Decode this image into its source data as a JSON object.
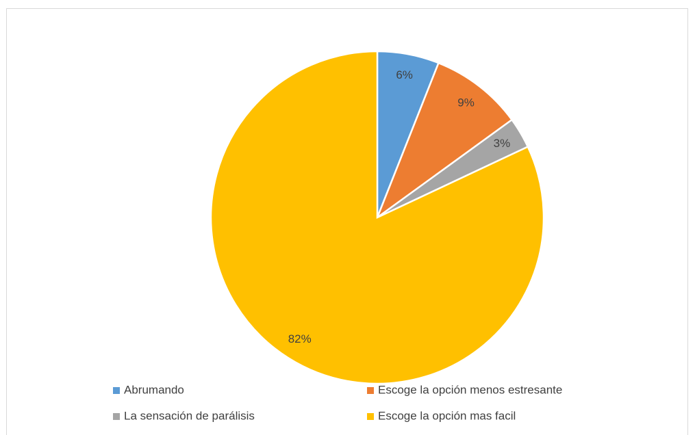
{
  "chart_data": {
    "type": "pie",
    "categories": [
      "Abrumando",
      "Escoge la opción menos estresante",
      "La sensación de parálisis",
      "Escoge la opción mas facil"
    ],
    "values": [
      6,
      9,
      3,
      82
    ],
    "value_labels": [
      "6%",
      "9%",
      "3%",
      "82%"
    ],
    "colors": [
      "#5b9bd5",
      "#ed7d31",
      "#a5a5a5",
      "#ffc000"
    ],
    "legend": "bottom"
  }
}
